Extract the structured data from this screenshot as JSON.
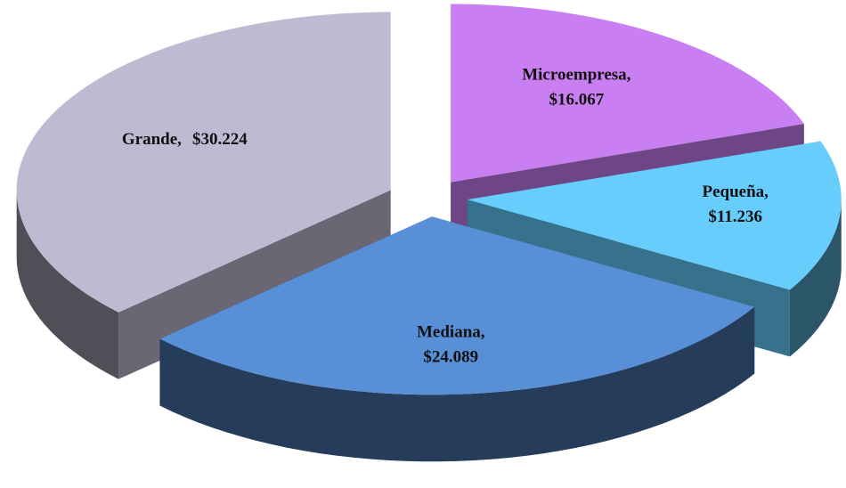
{
  "chart_data": {
    "type": "pie",
    "categories": [
      "Microempresa,",
      "Pequeña,",
      "Mediana,",
      "Grande,"
    ],
    "values": [
      16067,
      11236,
      24089,
      30224
    ],
    "value_labels": [
      "$16.067",
      "$11.236",
      "$24.089",
      "$30.224"
    ],
    "colors": [
      "#c97ff2",
      "#66cdfd",
      "#5890d8",
      "#c0b9d2"
    ]
  }
}
